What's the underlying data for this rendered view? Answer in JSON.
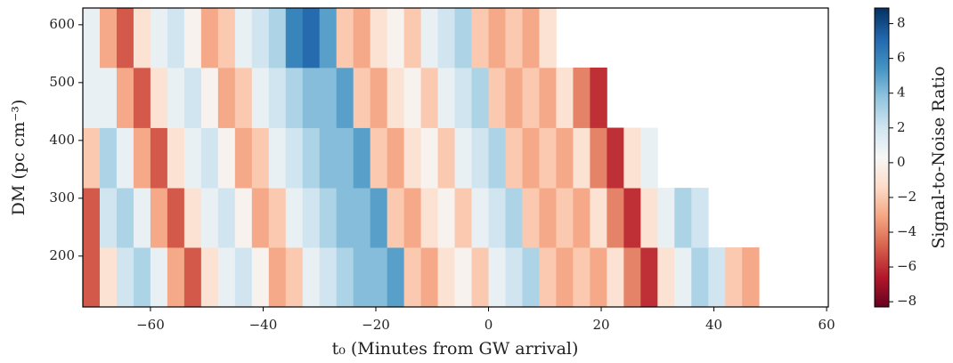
{
  "chart_data": {
    "type": "heatmap",
    "xlabel": "t₀ (Minutes from GW arrival)",
    "ylabel": "DM (pc cm⁻³)",
    "colorbar_label": "Signal-to-Noise Ratio",
    "colormap": "RdBu",
    "clim": [
      -8.3,
      8.9
    ],
    "cticks": [
      {
        "value": -8,
        "label": "−8"
      },
      {
        "value": -6,
        "label": "−6"
      },
      {
        "value": -4,
        "label": "−4"
      },
      {
        "value": -2,
        "label": "−2"
      },
      0,
      2,
      4,
      6,
      8
    ],
    "xlim": [
      -72,
      60.3
    ],
    "xticks": [
      {
        "value": -60,
        "label": "−60"
      },
      {
        "value": -40,
        "label": "−40"
      },
      {
        "value": -20,
        "label": "−20"
      },
      0,
      20,
      40,
      60
    ],
    "ylim": [
      112,
      629
    ],
    "yticks": [
      200,
      300,
      400,
      500,
      600
    ],
    "x_edges": [
      -72,
      -69,
      -66,
      -63,
      -60,
      -57,
      -54,
      -51,
      -48,
      -45,
      -42,
      -39,
      -36,
      -33,
      -30,
      -27,
      -24,
      -21,
      -18,
      -15,
      -12,
      -9,
      -6,
      -3,
      0,
      3,
      6,
      9,
      12,
      15,
      18,
      21,
      24,
      27,
      30,
      33,
      36,
      39,
      42,
      45,
      48,
      51
    ],
    "y_edges": [
      112,
      215,
      318,
      422,
      526,
      629
    ],
    "values": [
      [
        -5,
        -1,
        2,
        3,
        1,
        -3,
        -5,
        -1,
        1,
        2,
        0,
        -3,
        -2,
        1,
        2,
        3,
        4,
        4,
        5,
        -2,
        -3,
        -1,
        0,
        -2,
        1,
        2,
        3,
        -2,
        -3,
        -2,
        -3,
        -1,
        -4,
        -6,
        -1,
        1,
        3,
        2,
        -2,
        -3,
        null
      ],
      [
        -5,
        2,
        3,
        1,
        -3,
        -5,
        -1,
        1,
        2,
        0,
        -3,
        -2,
        1,
        2,
        3,
        4,
        4,
        5,
        -2,
        -3,
        -1,
        0,
        -2,
        1,
        2,
        3,
        -2,
        -3,
        -2,
        -3,
        -1,
        -4,
        -6,
        -1,
        1,
        3,
        2,
        null,
        null,
        null,
        null
      ],
      [
        -2,
        3,
        1,
        -3,
        -5,
        -1,
        1,
        2,
        0,
        -3,
        -2,
        1,
        2,
        3,
        4,
        4,
        5,
        -2,
        -3,
        -1,
        0,
        -2,
        1,
        2,
        3,
        -2,
        -3,
        -2,
        -3,
        -1,
        -4,
        -6,
        -1,
        1,
        null,
        null,
        null,
        null,
        null,
        null,
        null
      ],
      [
        1,
        1,
        -3,
        -5,
        -1,
        1,
        2,
        0,
        -3,
        -2,
        1,
        2,
        3,
        4,
        4,
        5,
        -2,
        -3,
        -1,
        0,
        -2,
        1,
        2,
        3,
        -2,
        -3,
        -2,
        -3,
        -1,
        -4,
        -6,
        null,
        null,
        null,
        null,
        null,
        null,
        null,
        null,
        null,
        null
      ],
      [
        1,
        -3,
        -5,
        -1,
        1,
        2,
        0,
        -3,
        -2,
        1,
        2,
        3,
        6,
        7,
        5,
        -2,
        -3,
        -1,
        0,
        -2,
        1,
        2,
        3,
        -2,
        -3,
        -2,
        -3,
        -1,
        null,
        null,
        null,
        null,
        null,
        null,
        null,
        null,
        null,
        null,
        null,
        null,
        null
      ]
    ]
  }
}
